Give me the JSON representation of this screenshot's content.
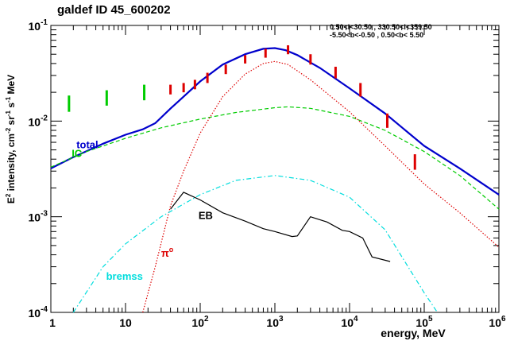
{
  "chart_data": {
    "type": "line",
    "title": "galdef ID 45_600202",
    "region_line1": "0.50<l<30.50 , 330.50<l<359.50",
    "region_line2": "-5.50<b<-0.50 ,  0.50<b< 5.50",
    "xlabel": "energy, MeV",
    "ylabel_parts": [
      "E",
      "2",
      " intensity, cm",
      "-2",
      " sr",
      "-1",
      " s",
      "-1",
      " MeV"
    ],
    "xscale": "log",
    "yscale": "log",
    "xlim": [
      1,
      1000000
    ],
    "ylim": [
      0.0001,
      0.1
    ],
    "x_ticks": [
      {
        "value": 1,
        "base": "1",
        "exp": ""
      },
      {
        "value": 10,
        "base": "10",
        "exp": ""
      },
      {
        "value": 100,
        "base": "10",
        "exp": "2"
      },
      {
        "value": 1000,
        "base": "10",
        "exp": "3"
      },
      {
        "value": 10000,
        "base": "10",
        "exp": "4"
      },
      {
        "value": 100000,
        "base": "10",
        "exp": "5"
      },
      {
        "value": 1000000,
        "base": "10",
        "exp": "6"
      }
    ],
    "y_ticks": [
      {
        "value": 0.0001,
        "base": "10",
        "exp": "-4"
      },
      {
        "value": 0.001,
        "base": "10",
        "exp": "-3"
      },
      {
        "value": 0.01,
        "base": "10",
        "exp": "-2"
      },
      {
        "value": 0.1,
        "base": "10",
        "exp": "-1"
      }
    ],
    "series": [
      {
        "name": "total",
        "color": "#0000cc",
        "style": "solid",
        "x": [
          1,
          2,
          5,
          10,
          17,
          25,
          40,
          60,
          100,
          200,
          400,
          700,
          1000,
          1400,
          2000,
          4000,
          10000,
          30000,
          100000,
          300000,
          1000000
        ],
        "y": [
          0.0032,
          0.0042,
          0.0058,
          0.0072,
          0.0082,
          0.0095,
          0.0135,
          0.018,
          0.026,
          0.039,
          0.05,
          0.057,
          0.058,
          0.055,
          0.049,
          0.036,
          0.022,
          0.012,
          0.0055,
          0.0032,
          0.0017
        ]
      },
      {
        "name": "IC",
        "color": "#00cc00",
        "style": "dash",
        "x": [
          1,
          3,
          10,
          30,
          100,
          300,
          1000,
          1500,
          3000,
          10000,
          30000,
          100000,
          300000,
          1000000
        ],
        "y": [
          0.0033,
          0.0048,
          0.0066,
          0.0085,
          0.0105,
          0.0123,
          0.0138,
          0.0141,
          0.0136,
          0.0112,
          0.008,
          0.0048,
          0.0027,
          0.0012
        ]
      },
      {
        "name": "π⁰",
        "color": "#dd0000",
        "style": "dot",
        "x": [
          17,
          25,
          40,
          60,
          100,
          200,
          400,
          700,
          1000,
          1500,
          3000,
          10000,
          30000,
          100000,
          300000,
          1000000
        ],
        "y": [
          0.0001,
          0.0003,
          0.0013,
          0.003,
          0.0075,
          0.018,
          0.031,
          0.04,
          0.042,
          0.039,
          0.027,
          0.0125,
          0.0055,
          0.0022,
          0.0011,
          0.00048
        ]
      },
      {
        "name": "bremss",
        "color": "#00dddd",
        "style": "dashdot",
        "x": [
          2,
          5,
          10,
          30,
          100,
          300,
          1000,
          3000,
          10000,
          30000,
          100000,
          150000
        ],
        "y": [
          0.0001,
          0.0003,
          0.00052,
          0.001,
          0.0017,
          0.0024,
          0.0027,
          0.0024,
          0.0016,
          0.00073,
          0.00016,
          0.0001
        ]
      },
      {
        "name": "EB",
        "color": "#000000",
        "style": "solid",
        "x": [
          40,
          60,
          100,
          200,
          400,
          700,
          1000,
          1700,
          2000,
          3000,
          5000,
          8000,
          10000,
          15000,
          20000,
          35000
        ],
        "y": [
          0.0012,
          0.0018,
          0.0015,
          0.0011,
          0.0009,
          0.00075,
          0.0007,
          0.00062,
          0.00063,
          0.001,
          0.00088,
          0.00072,
          0.0007,
          0.0006,
          0.00038,
          0.00034
        ]
      }
    ],
    "data_points": [
      {
        "x": 1.75,
        "ylo": 0.0125,
        "yhi": 0.0185,
        "color": "#00cc00"
      },
      {
        "x": 5.6,
        "ylo": 0.0145,
        "yhi": 0.021,
        "color": "#00cc00"
      },
      {
        "x": 17.8,
        "ylo": 0.0165,
        "yhi": 0.024,
        "color": "#00cc00"
      },
      {
        "x": 40,
        "ylo": 0.019,
        "yhi": 0.024,
        "color": "#dd0000"
      },
      {
        "x": 60,
        "ylo": 0.02,
        "yhi": 0.025,
        "color": "#dd0000"
      },
      {
        "x": 85,
        "ylo": 0.0215,
        "yhi": 0.027,
        "color": "#dd0000"
      },
      {
        "x": 125,
        "ylo": 0.025,
        "yhi": 0.032,
        "color": "#dd0000"
      },
      {
        "x": 220,
        "ylo": 0.031,
        "yhi": 0.039,
        "color": "#dd0000"
      },
      {
        "x": 400,
        "ylo": 0.04,
        "yhi": 0.049,
        "color": "#dd0000"
      },
      {
        "x": 750,
        "ylo": 0.046,
        "yhi": 0.057,
        "color": "#dd0000"
      },
      {
        "x": 1500,
        "ylo": 0.05,
        "yhi": 0.062,
        "color": "#dd0000"
      },
      {
        "x": 3000,
        "ylo": 0.039,
        "yhi": 0.05,
        "color": "#dd0000"
      },
      {
        "x": 6500,
        "ylo": 0.028,
        "yhi": 0.037,
        "color": "#dd0000"
      },
      {
        "x": 14000,
        "ylo": 0.018,
        "yhi": 0.025,
        "color": "#dd0000"
      },
      {
        "x": 32000,
        "ylo": 0.0085,
        "yhi": 0.012,
        "color": "#dd0000"
      },
      {
        "x": 75000,
        "ylo": 0.0031,
        "yhi": 0.0045,
        "color": "#dd0000"
      }
    ],
    "labels": [
      {
        "text": "total",
        "x": 2.2,
        "y": 0.0052,
        "color": "#0000cc"
      },
      {
        "text": "IC",
        "x": 1.9,
        "y": 0.0042,
        "color": "#00cc00"
      },
      {
        "text": "EB",
        "x": 95,
        "y": 0.00095,
        "color": "#000000"
      },
      {
        "text": "π",
        "sup": "o",
        "x": 30,
        "y": 0.00038,
        "color": "#dd0000"
      },
      {
        "text": "bremss",
        "x": 5.5,
        "y": 0.00022,
        "color": "#00dddd"
      }
    ],
    "grid": false
  }
}
